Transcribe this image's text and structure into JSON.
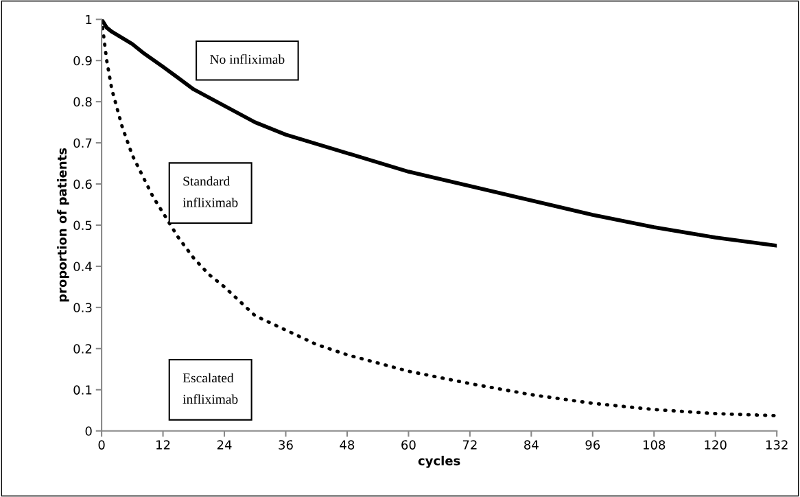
{
  "chart_data": {
    "type": "line",
    "xlabel": "cycles",
    "ylabel": "proportion of patients",
    "xlim": [
      0,
      132
    ],
    "xticks": [
      0,
      12,
      24,
      36,
      48,
      60,
      72,
      84,
      96,
      108,
      120,
      132
    ],
    "ylim": [
      0,
      1
    ],
    "yticks": [
      0,
      0.1,
      0.2,
      0.3,
      0.4,
      0.5,
      0.6,
      0.7,
      0.8,
      0.9,
      1
    ],
    "grid": false,
    "legend": false,
    "series": [
      {
        "color": "#000000",
        "line_style": "solid",
        "x": [
          0,
          1,
          2,
          4,
          6,
          8,
          12,
          18,
          24,
          30,
          36,
          48,
          60,
          72,
          84,
          96,
          108,
          120,
          132
        ],
        "values": [
          1.0,
          0.98,
          0.97,
          0.955,
          0.94,
          0.92,
          0.885,
          0.83,
          0.79,
          0.75,
          0.72,
          0.675,
          0.63,
          0.595,
          0.56,
          0.525,
          0.495,
          0.47,
          0.45
        ]
      },
      {
        "color": "#000000",
        "line_style": "dotted",
        "x": [
          0,
          1,
          2,
          4,
          6,
          8,
          10,
          12,
          15,
          18,
          21,
          24,
          30,
          36,
          42,
          48,
          60,
          72,
          84,
          96,
          108,
          120,
          132
        ],
        "values": [
          1.0,
          0.9,
          0.83,
          0.74,
          0.67,
          0.62,
          0.57,
          0.53,
          0.47,
          0.42,
          0.38,
          0.35,
          0.28,
          0.245,
          0.21,
          0.185,
          0.145,
          0.115,
          0.088,
          0.067,
          0.052,
          0.042,
          0.037
        ]
      }
    ],
    "annotations": [
      "No infliximab",
      "Standard\ninfliximab",
      "Escalated\ninfliximab"
    ]
  }
}
